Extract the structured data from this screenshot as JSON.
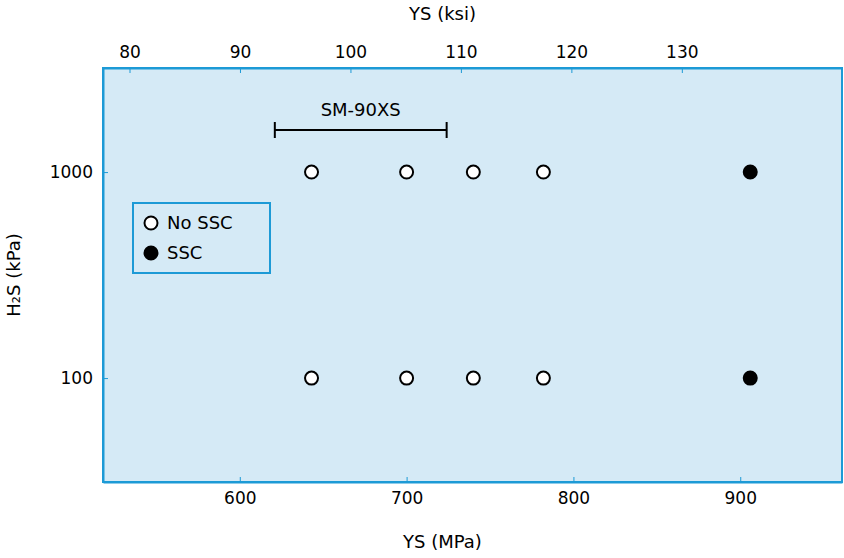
{
  "chart_data": {
    "type": "scatter",
    "x_label": "YS (MPa)",
    "x2_label": "YS (ksi)",
    "y_label": "H₂S (kPa)",
    "xlim": [
      518,
      961
    ],
    "xticks": [
      600,
      700,
      800,
      900
    ],
    "x2lim": [
      77.6,
      144.5
    ],
    "x2ticks": [
      80,
      90,
      100,
      110,
      120,
      130
    ],
    "ylim": [
      31.3,
      3200
    ],
    "yticks": [
      100,
      1000
    ],
    "log": "y",
    "grid": false,
    "legend": "center left",
    "series": [
      {
        "name": "No SSC",
        "marker": "open",
        "color": "#000000",
        "x": [
          643,
          700,
          740,
          782,
          643,
          700,
          740,
          782
        ],
        "values": [
          1000,
          1000,
          1000,
          1000,
          100,
          100,
          100,
          100
        ]
      },
      {
        "name": "SSC",
        "marker": "filled",
        "color": "#000000",
        "x": [
          906,
          906
        ],
        "values": [
          1000,
          100
        ]
      }
    ],
    "annotations": [
      {
        "text": "SM-90XS",
        "x": [
          621,
          724
        ],
        "y": 1600
      }
    ]
  }
}
